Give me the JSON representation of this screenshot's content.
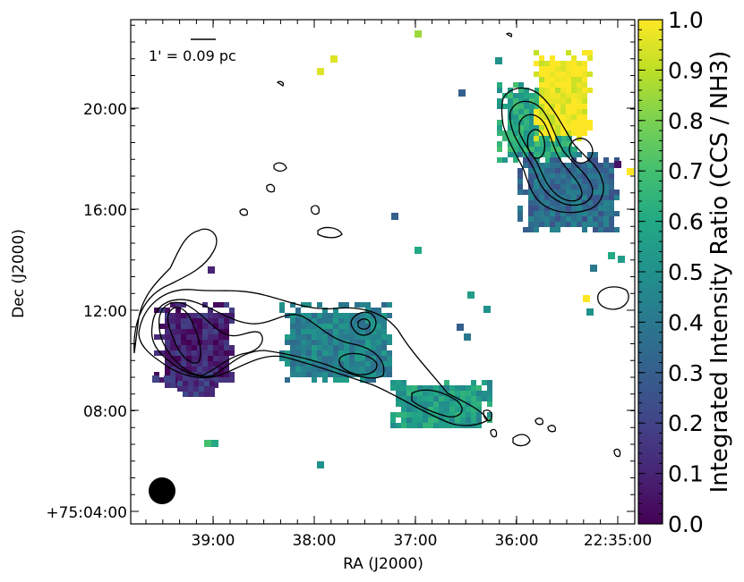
{
  "chart_data": {
    "type": "heatmap",
    "title": "",
    "xlabel": "RA (J2000)",
    "ylabel": "Dec (J2000)",
    "x_ticks": [
      "39:00",
      "38:00",
      "37:00",
      "36:00",
      "22:35:00"
    ],
    "y_ticks": [
      "+75:04:00",
      "08:00",
      "12:00",
      "16:00",
      "20:00"
    ],
    "scalebar_label": "1' = 0.09 pc",
    "colorbar": {
      "label": "Integrated Intensity Ratio (CCS / NH3)",
      "range": [
        0.0,
        1.0
      ],
      "ticks": [
        "0.0",
        "0.1",
        "0.2",
        "0.3",
        "0.4",
        "0.5",
        "0.6",
        "0.7",
        "0.8",
        "0.9",
        "1.0"
      ],
      "colormap": "viridis"
    },
    "regions": [
      {
        "id": "west-core",
        "ratio": 0.1
      },
      {
        "id": "west-tail",
        "ratio": 0.15
      },
      {
        "id": "central-filament",
        "ratio": 0.45
      },
      {
        "id": "east-filament",
        "ratio": 0.55
      },
      {
        "id": "north-east-core",
        "ratio": 0.6
      },
      {
        "id": "north-east-bright",
        "ratio": 1.0
      },
      {
        "id": "north-east-south",
        "ratio": 0.35
      }
    ],
    "beam": "circle",
    "grid": false
  }
}
